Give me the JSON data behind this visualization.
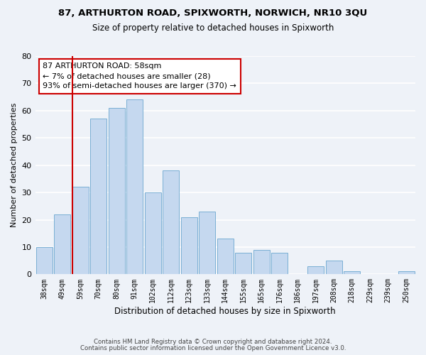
{
  "title1": "87, ARTHURTON ROAD, SPIXWORTH, NORWICH, NR10 3QU",
  "title2": "Size of property relative to detached houses in Spixworth",
  "xlabel": "Distribution of detached houses by size in Spixworth",
  "ylabel": "Number of detached properties",
  "bar_color": "#c5d8ef",
  "bar_edge_color": "#7aafd4",
  "categories": [
    "38sqm",
    "49sqm",
    "59sqm",
    "70sqm",
    "80sqm",
    "91sqm",
    "102sqm",
    "112sqm",
    "123sqm",
    "133sqm",
    "144sqm",
    "155sqm",
    "165sqm",
    "176sqm",
    "186sqm",
    "197sqm",
    "208sqm",
    "218sqm",
    "229sqm",
    "239sqm",
    "250sqm"
  ],
  "values": [
    10,
    22,
    32,
    57,
    61,
    64,
    30,
    38,
    21,
    23,
    13,
    8,
    9,
    8,
    0,
    3,
    5,
    1,
    0,
    0,
    1
  ],
  "vline_index": 2,
  "vline_color": "#cc0000",
  "ylim": [
    0,
    80
  ],
  "yticks": [
    0,
    10,
    20,
    30,
    40,
    50,
    60,
    70,
    80
  ],
  "annotation_line1": "87 ARTHURTON ROAD: 58sqm",
  "annotation_line2": "← 7% of detached houses are smaller (28)",
  "annotation_line3": "93% of semi-detached houses are larger (370) →",
  "footnote1": "Contains HM Land Registry data © Crown copyright and database right 2024.",
  "footnote2": "Contains public sector information licensed under the Open Government Licence v3.0.",
  "background_color": "#eef2f8",
  "grid_color": "#ffffff"
}
